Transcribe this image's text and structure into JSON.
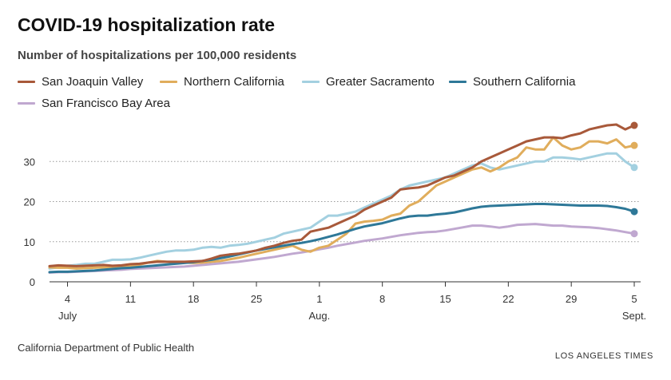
{
  "title": "COVID-19 hospitalization rate",
  "subtitle": "Number of hospitalizations per 100,000 residents",
  "source": "California Department of Public Health",
  "credit": "LOS ANGELES TIMES",
  "chart_data": {
    "type": "line",
    "grid": true,
    "ylim": [
      0,
      40
    ],
    "yticks": [
      0,
      10,
      20,
      30
    ],
    "x": [
      "Jul 2",
      "Jul 3",
      "Jul 4",
      "Jul 5",
      "Jul 6",
      "Jul 7",
      "Jul 8",
      "Jul 9",
      "Jul 10",
      "Jul 11",
      "Jul 12",
      "Jul 13",
      "Jul 14",
      "Jul 15",
      "Jul 16",
      "Jul 17",
      "Jul 18",
      "Jul 19",
      "Jul 20",
      "Jul 21",
      "Jul 22",
      "Jul 23",
      "Jul 24",
      "Jul 25",
      "Jul 26",
      "Jul 27",
      "Jul 28",
      "Jul 29",
      "Jul 30",
      "Jul 31",
      "Aug 1",
      "Aug 2",
      "Aug 3",
      "Aug 4",
      "Aug 5",
      "Aug 6",
      "Aug 7",
      "Aug 8",
      "Aug 9",
      "Aug 10",
      "Aug 11",
      "Aug 12",
      "Aug 13",
      "Aug 14",
      "Aug 15",
      "Aug 16",
      "Aug 17",
      "Aug 18",
      "Aug 19",
      "Aug 20",
      "Aug 21",
      "Aug 22",
      "Aug 23",
      "Aug 24",
      "Aug 25",
      "Aug 26",
      "Aug 27",
      "Aug 28",
      "Aug 29",
      "Aug 30",
      "Aug 31",
      "Sep 1",
      "Sep 2",
      "Sep 3",
      "Sep 4",
      "Sep 5"
    ],
    "xticks": [
      {
        "x": "Jul 4",
        "label": "4",
        "sub": "July"
      },
      {
        "x": "Jul 11",
        "label": "11",
        "sub": ""
      },
      {
        "x": "Jul 18",
        "label": "18",
        "sub": ""
      },
      {
        "x": "Jul 25",
        "label": "25",
        "sub": ""
      },
      {
        "x": "Aug 1",
        "label": "1",
        "sub": "Aug."
      },
      {
        "x": "Aug 8",
        "label": "8",
        "sub": ""
      },
      {
        "x": "Aug 15",
        "label": "15",
        "sub": ""
      },
      {
        "x": "Aug 22",
        "label": "22",
        "sub": ""
      },
      {
        "x": "Aug 29",
        "label": "29",
        "sub": ""
      },
      {
        "x": "Sep 5",
        "label": "5",
        "sub": "Sept."
      }
    ],
    "series": [
      {
        "name": "San Joaquin Valley",
        "color": "#a8593a",
        "values": [
          3.9,
          4.1,
          4.0,
          3.9,
          4.0,
          4.1,
          4.2,
          4.0,
          4.1,
          4.4,
          4.5,
          4.8,
          5.0,
          5.0,
          5.0,
          5.0,
          5.1,
          5.2,
          5.8,
          6.5,
          6.8,
          7.0,
          7.4,
          7.8,
          8.5,
          9.0,
          9.7,
          10.2,
          10.5,
          12.5,
          13.0,
          13.5,
          14.5,
          15.5,
          16.5,
          18.0,
          19.0,
          20.0,
          21.0,
          23.0,
          23.3,
          23.5,
          24.0,
          25.0,
          26.0,
          26.5,
          27.5,
          28.5,
          30.0,
          31.0,
          32.0,
          33.0,
          34.0,
          35.0,
          35.5,
          36.0,
          36.0,
          35.8,
          36.5,
          37.0,
          38.0,
          38.5,
          39.0,
          39.2,
          38.0,
          39.0
        ]
      },
      {
        "name": "Northern California",
        "color": "#e0ad5c",
        "values": [
          3.6,
          3.5,
          3.5,
          3.3,
          3.4,
          3.5,
          3.6,
          3.6,
          3.7,
          3.9,
          4.3,
          4.8,
          5.2,
          5.0,
          4.9,
          4.8,
          4.7,
          4.8,
          5.0,
          5.2,
          5.6,
          6.0,
          6.5,
          7.0,
          7.5,
          8.0,
          8.5,
          9.0,
          8.0,
          7.5,
          8.5,
          9.0,
          10.5,
          12.0,
          14.5,
          15.0,
          15.2,
          15.5,
          16.5,
          17.0,
          19.0,
          20.0,
          22.0,
          24.0,
          25.0,
          26.0,
          27.0,
          28.0,
          28.5,
          27.5,
          28.5,
          30.0,
          31.0,
          33.5,
          33.0,
          33.0,
          36.0,
          34.0,
          33.0,
          33.5,
          35.0,
          35.0,
          34.5,
          35.5,
          33.5,
          34.0
        ]
      },
      {
        "name": "Greater Sacramento",
        "color": "#a3d0e0",
        "values": [
          3.3,
          3.6,
          4.0,
          4.2,
          4.5,
          4.5,
          5.0,
          5.5,
          5.5,
          5.6,
          6.0,
          6.5,
          7.0,
          7.5,
          7.8,
          7.8,
          8.0,
          8.5,
          8.7,
          8.5,
          9.0,
          9.2,
          9.5,
          10.0,
          10.5,
          11.0,
          12.0,
          12.5,
          13.0,
          13.5,
          15.0,
          16.5,
          16.5,
          17.0,
          17.5,
          18.5,
          19.5,
          20.5,
          21.5,
          23.0,
          24.0,
          24.5,
          25.0,
          25.5,
          26.0,
          27.0,
          28.0,
          29.0,
          29.5,
          28.5,
          28.0,
          28.5,
          29.0,
          29.5,
          30.0,
          30.0,
          31.0,
          31.0,
          30.8,
          30.5,
          31.0,
          31.5,
          32.0,
          32.0,
          30.0,
          28.5
        ]
      },
      {
        "name": "Southern California",
        "color": "#2e7898",
        "values": [
          2.4,
          2.5,
          2.5,
          2.6,
          2.7,
          2.8,
          3.0,
          3.2,
          3.4,
          3.5,
          3.7,
          3.9,
          4.1,
          4.3,
          4.5,
          4.7,
          4.9,
          5.2,
          5.5,
          5.9,
          6.3,
          6.8,
          7.3,
          7.8,
          8.2,
          8.6,
          9.0,
          9.4,
          9.7,
          10.1,
          10.6,
          11.2,
          11.8,
          12.5,
          13.2,
          13.8,
          14.2,
          14.6,
          15.2,
          15.8,
          16.3,
          16.5,
          16.5,
          16.8,
          17.0,
          17.3,
          17.8,
          18.3,
          18.7,
          18.9,
          19.0,
          19.1,
          19.2,
          19.3,
          19.4,
          19.4,
          19.3,
          19.2,
          19.1,
          19.0,
          19.0,
          19.0,
          18.9,
          18.6,
          18.2,
          17.5
        ]
      },
      {
        "name": "San Francisco Bay Area",
        "color": "#c0a8d0",
        "values": [
          2.3,
          2.4,
          2.4,
          2.5,
          2.6,
          2.7,
          2.8,
          2.9,
          3.0,
          3.2,
          3.3,
          3.4,
          3.5,
          3.6,
          3.7,
          3.8,
          4.0,
          4.2,
          4.4,
          4.6,
          4.8,
          5.0,
          5.3,
          5.6,
          5.9,
          6.2,
          6.6,
          7.0,
          7.3,
          7.7,
          8.1,
          8.5,
          9.0,
          9.4,
          9.8,
          10.2,
          10.5,
          10.8,
          11.2,
          11.6,
          11.9,
          12.2,
          12.4,
          12.5,
          12.8,
          13.2,
          13.6,
          14.0,
          14.0,
          13.8,
          13.5,
          13.8,
          14.2,
          14.3,
          14.4,
          14.2,
          14.0,
          14.0,
          13.8,
          13.7,
          13.6,
          13.4,
          13.1,
          12.8,
          12.4,
          12.0
        ]
      }
    ]
  }
}
